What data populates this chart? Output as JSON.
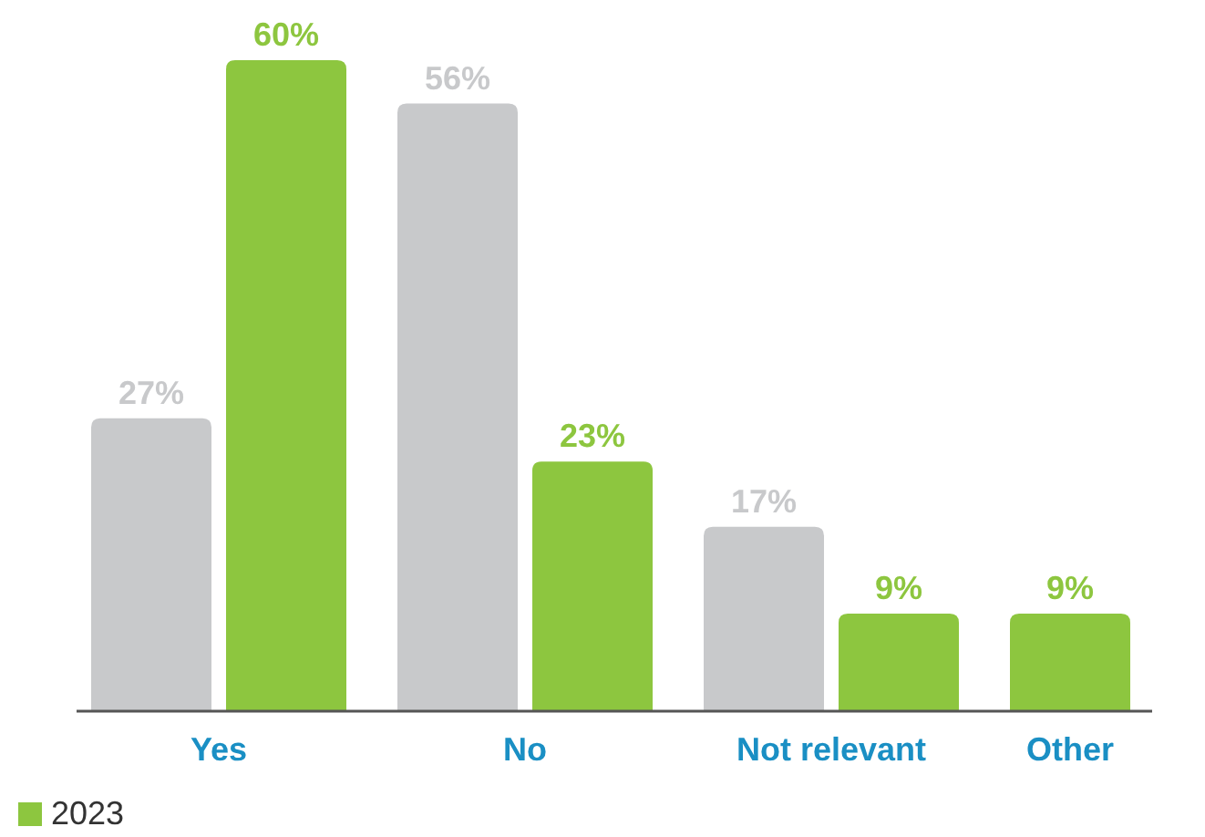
{
  "chart_data": {
    "type": "bar",
    "categories": [
      "Yes",
      "No",
      "Not relevant",
      "Other"
    ],
    "series": [
      {
        "color": "#c8c9cb",
        "values": [
          27,
          56,
          17,
          null
        ],
        "value_labels": [
          "27%",
          "56%",
          "17%",
          null
        ]
      },
      {
        "name": "2023",
        "color": "#8dc63f",
        "values": [
          60,
          23,
          9,
          9
        ],
        "value_labels": [
          "60%",
          "23%",
          "9%",
          "9%"
        ]
      }
    ],
    "legend": "bottom left"
  }
}
